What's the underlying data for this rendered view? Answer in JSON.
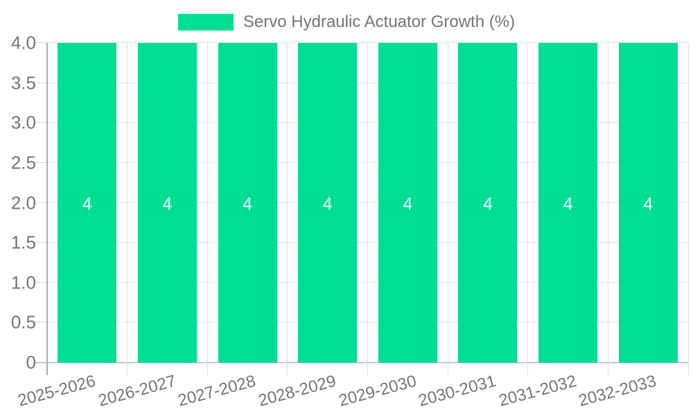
{
  "chart_data": {
    "type": "bar",
    "title": "",
    "legend": {
      "label": "Servo Hydraulic Actuator Growth (%)",
      "position": "top",
      "swatch_color": "#00de94"
    },
    "categories": [
      "2025-2026",
      "2026-2027",
      "2027-2028",
      "2028-2029",
      "2029-2030",
      "2030-2031",
      "2031-2032",
      "2032-2033"
    ],
    "series": [
      {
        "name": "Servo Hydraulic Actuator Growth (%)",
        "values": [
          4,
          4,
          4,
          4,
          4,
          4,
          4,
          4
        ]
      }
    ],
    "values": [
      4,
      4,
      4,
      4,
      4,
      4,
      4,
      4
    ],
    "bar_value_labels": [
      "4",
      "4",
      "4",
      "4",
      "4",
      "4",
      "4",
      "4"
    ],
    "xlabel": "",
    "ylabel": "",
    "ylim": [
      0,
      4
    ],
    "yticks": [
      0,
      0.5,
      1,
      1.5,
      2,
      2.5,
      3,
      3.5,
      4
    ],
    "ytick_labels": [
      "0",
      "0.5",
      "1.0",
      "1.5",
      "2.0",
      "2.5",
      "3.0",
      "3.5",
      "4.0"
    ],
    "grid": true,
    "colors": {
      "bar": "#00de94",
      "value_label_text": "#ffffff",
      "axis_text": "#757575",
      "gridline": "#e0e0e0",
      "zero_line": "#c6c6c6",
      "y_axis_line": "#ababab"
    }
  }
}
